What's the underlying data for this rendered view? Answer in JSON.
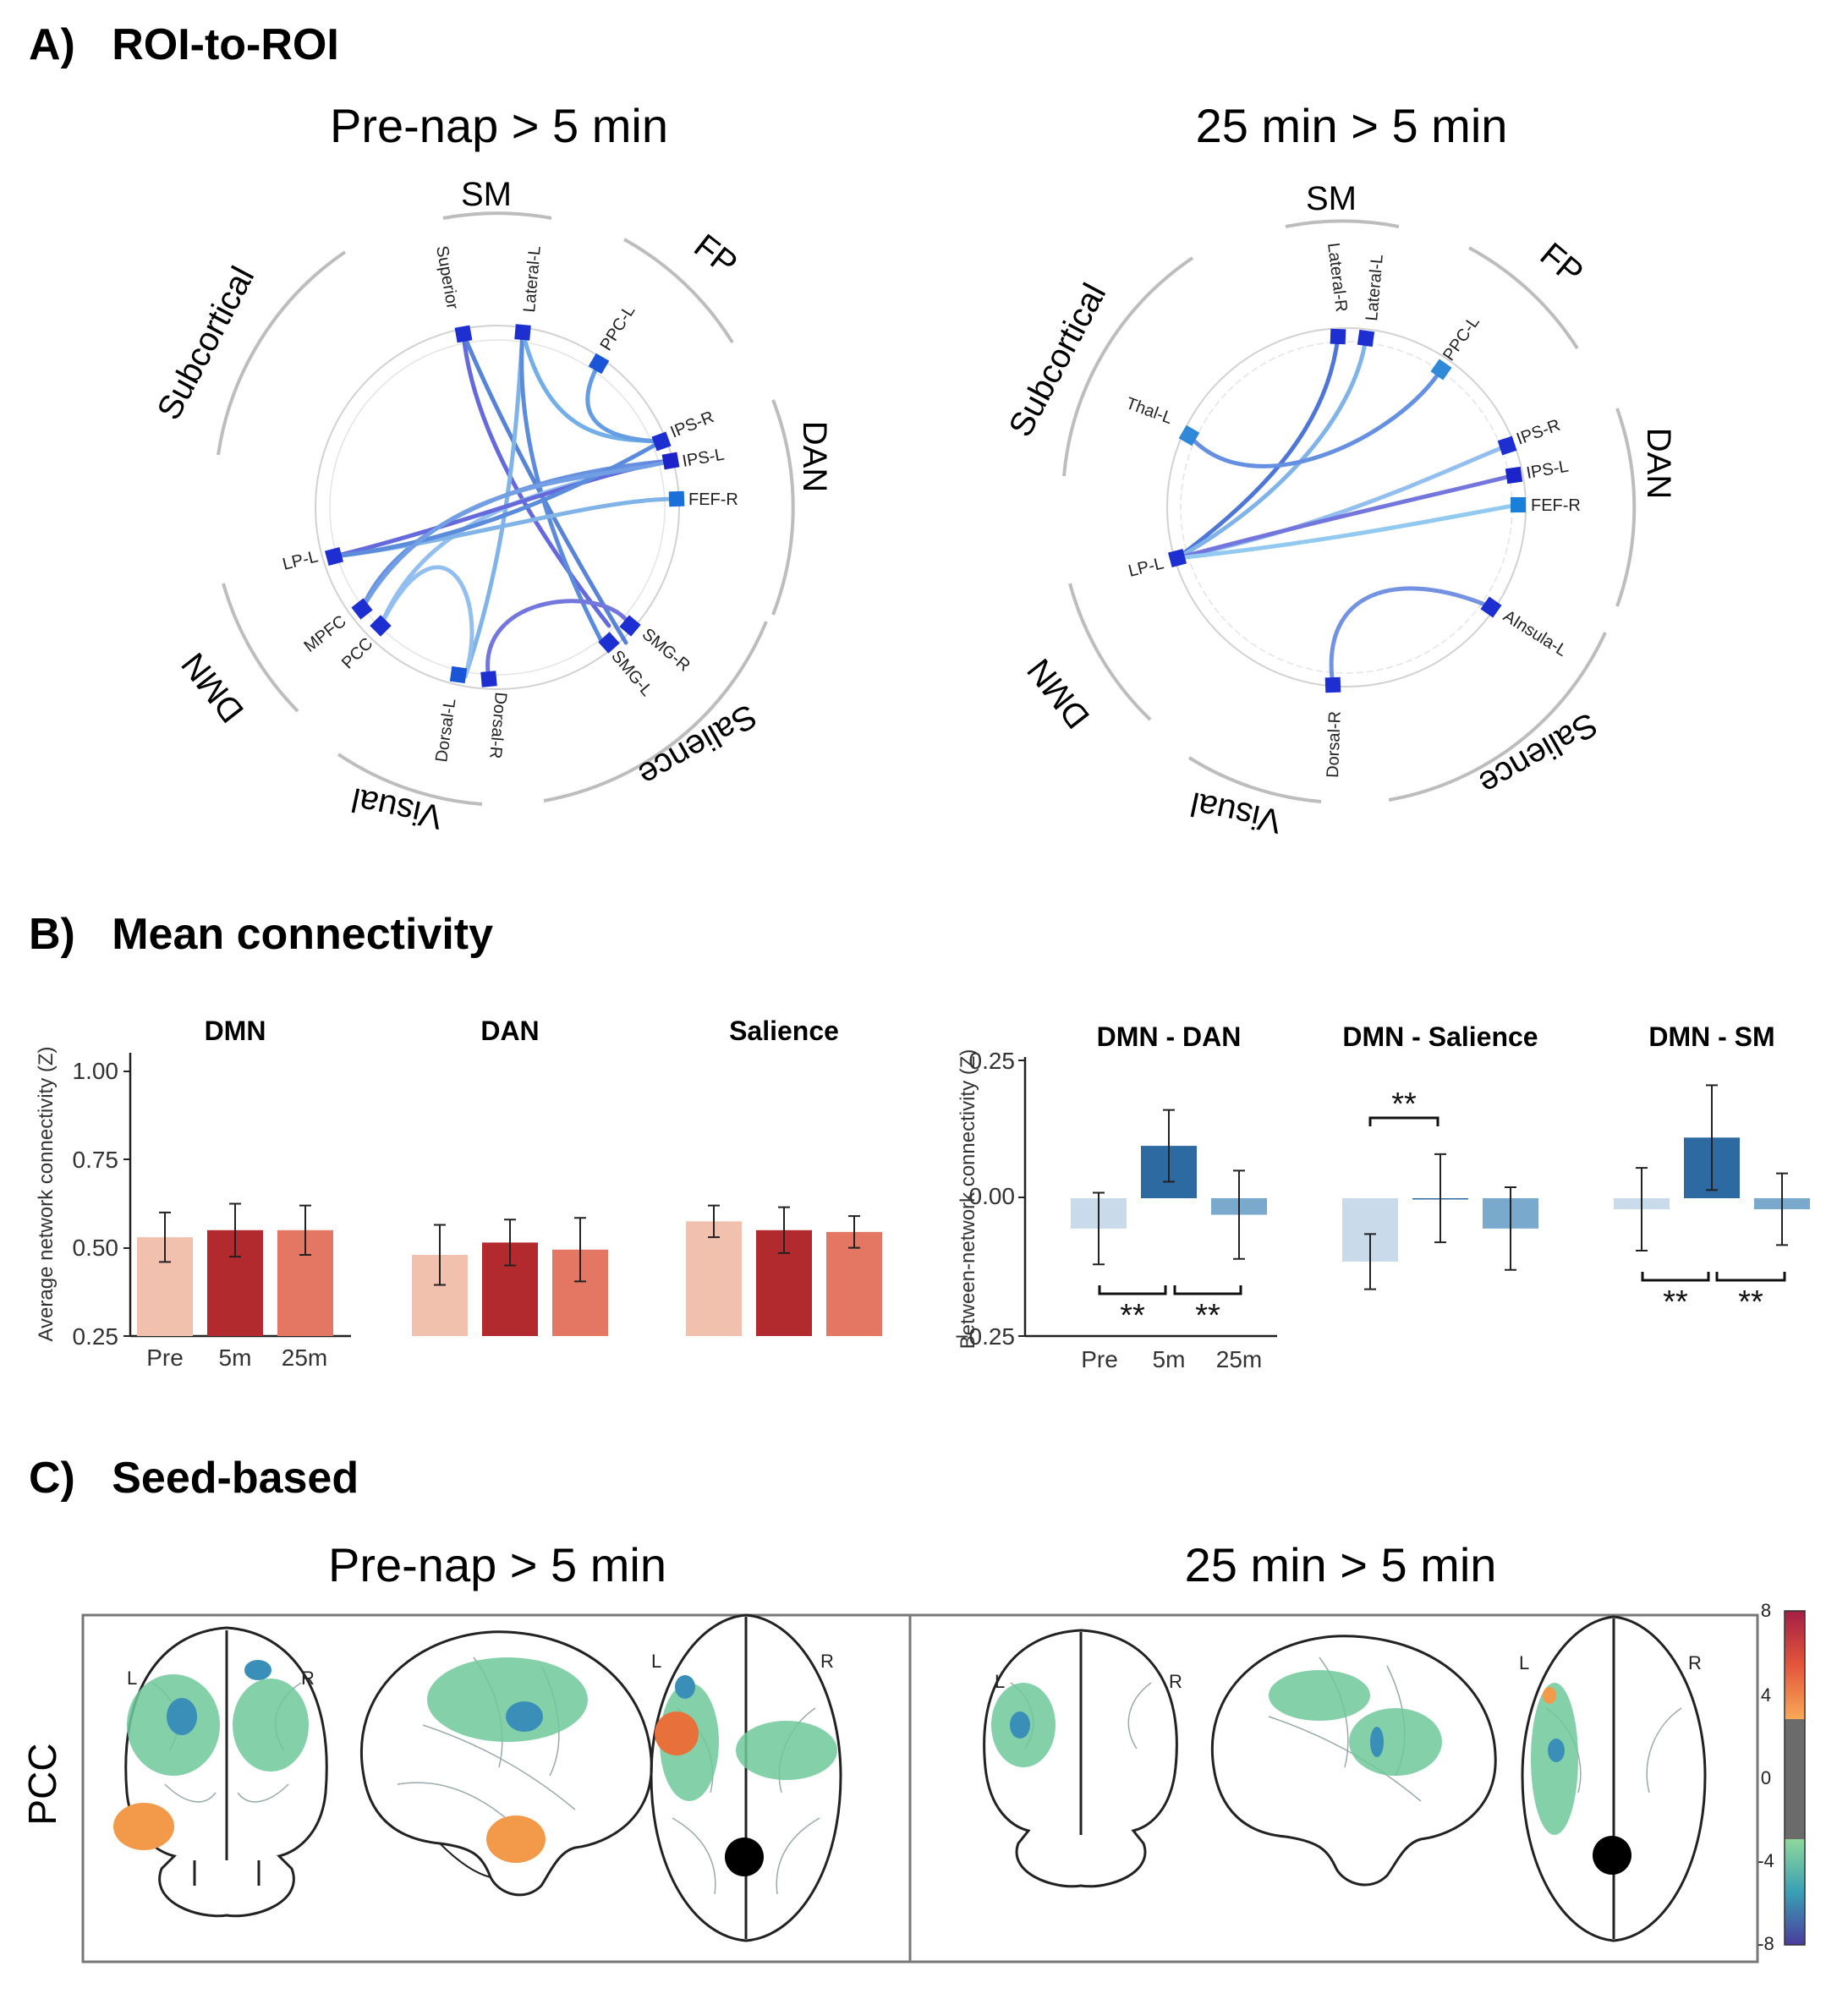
{
  "panelA": {
    "heading": "A)   ROI-to-ROI",
    "left": {
      "title": "Pre-nap > 5 min",
      "groups": [
        "SM",
        "FP",
        "DAN",
        "Salience",
        "Visual",
        "DMN",
        "Subcortical"
      ],
      "nodes": [
        "Superior",
        "Lateral-L",
        "PPC-L",
        "IPS-R",
        "IPS-L",
        "FEF-R",
        "SMG-R",
        "SMG-L",
        "Dorsal-R",
        "Dorsal-L",
        "PCC",
        "MPFC",
        "LP-L"
      ]
    },
    "right": {
      "title": "25 min > 5 min",
      "groups": [
        "SM",
        "FP",
        "DAN",
        "Salience",
        "Visual",
        "DMN",
        "Subcortical"
      ],
      "nodes": [
        "Lateral-R",
        "Lateral-L",
        "PPC-L",
        "IPS-R",
        "IPS-L",
        "FEF-R",
        "AInsula-L",
        "Dorsal-R",
        "LP-L",
        "Thal-L"
      ]
    }
  },
  "panelB": {
    "heading": "B)   Mean connectivity",
    "chart_data": [
      {
        "type": "bar",
        "ylabel": "Average network connectivity (Z)",
        "ylim": [
          0.25,
          1.0
        ],
        "yticks": [
          "1.00",
          "0.75",
          "0.50",
          "0.25"
        ],
        "categories": [
          "Pre",
          "5m",
          "25m"
        ],
        "colors": [
          "#f2c1ad",
          "#b2292e",
          "#e37763"
        ],
        "groups": [
          {
            "name": "DMN",
            "values": [
              0.53,
              0.55,
              0.55
            ],
            "errors": [
              0.07,
              0.075,
              0.07
            ]
          },
          {
            "name": "DAN",
            "values": [
              0.48,
              0.515,
              0.495
            ],
            "errors": [
              0.085,
              0.065,
              0.09
            ]
          },
          {
            "name": "Salience",
            "values": [
              0.575,
              0.55,
              0.545
            ],
            "errors": [
              0.045,
              0.065,
              0.045
            ]
          }
        ]
      },
      {
        "type": "bar",
        "ylabel": "Between-network connectivity (Z)",
        "ylim": [
          -0.25,
          0.25
        ],
        "yticks": [
          "0.25",
          "0.00",
          "−0.25"
        ],
        "categories": [
          "Pre",
          "5m",
          "25m"
        ],
        "colors": [
          "#c9daeb",
          "#2e6aa2",
          "#79a9cd"
        ],
        "significance": "**",
        "groups": [
          {
            "name": "DMN - DAN",
            "values": [
              -0.055,
              0.095,
              -0.03
            ],
            "errors": [
              0.065,
              0.065,
              0.08
            ]
          },
          {
            "name": "DMN - Salience",
            "values": [
              -0.115,
              0.0,
              -0.055
            ],
            "errors": [
              0.05,
              0.08,
              0.075
            ]
          },
          {
            "name": "DMN - SM",
            "values": [
              -0.02,
              0.11,
              -0.02
            ],
            "errors": [
              0.075,
              0.095,
              0.065
            ]
          }
        ]
      }
    ]
  },
  "panelC": {
    "heading": "C)   Seed-based",
    "seed": "PCC",
    "titles": [
      "Pre-nap > 5 min",
      "25 min > 5 min"
    ],
    "orientation": {
      "left": "L",
      "right": "R"
    },
    "colorbar": {
      "ticks": [
        "8",
        "4",
        "0",
        "-4",
        "-8"
      ]
    }
  }
}
